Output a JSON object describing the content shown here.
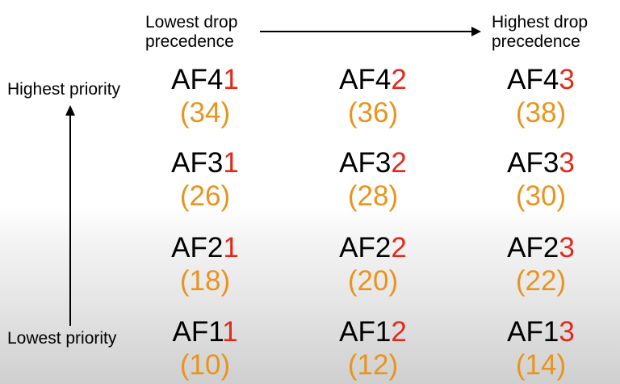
{
  "labels": {
    "lowest_drop": [
      "Lowest drop",
      "precedence"
    ],
    "highest_drop": [
      "Highest drop",
      "precedence"
    ],
    "highest_priority": "Highest priority",
    "lowest_priority": "Lowest priority"
  },
  "colors": {
    "text": "#000000",
    "drop_digit": "#e12a1e",
    "dscp_value": "#e8941e"
  },
  "grid": [
    [
      {
        "prefix": "AF4",
        "digit": "1",
        "dscp": "(34)"
      },
      {
        "prefix": "AF4",
        "digit": "2",
        "dscp": "(36)"
      },
      {
        "prefix": "AF4",
        "digit": "3",
        "dscp": "(38)"
      }
    ],
    [
      {
        "prefix": "AF3",
        "digit": "1",
        "dscp": "(26)"
      },
      {
        "prefix": "AF3",
        "digit": "2",
        "dscp": "(28)"
      },
      {
        "prefix": "AF3",
        "digit": "3",
        "dscp": "(30)"
      }
    ],
    [
      {
        "prefix": "AF2",
        "digit": "1",
        "dscp": "(18)"
      },
      {
        "prefix": "AF2",
        "digit": "2",
        "dscp": "(20)"
      },
      {
        "prefix": "AF2",
        "digit": "3",
        "dscp": "(22)"
      }
    ],
    [
      {
        "prefix": "AF1",
        "digit": "1",
        "dscp": "(10)"
      },
      {
        "prefix": "AF1",
        "digit": "2",
        "dscp": "(12)"
      },
      {
        "prefix": "AF1",
        "digit": "3",
        "dscp": "(14)"
      }
    ]
  ]
}
